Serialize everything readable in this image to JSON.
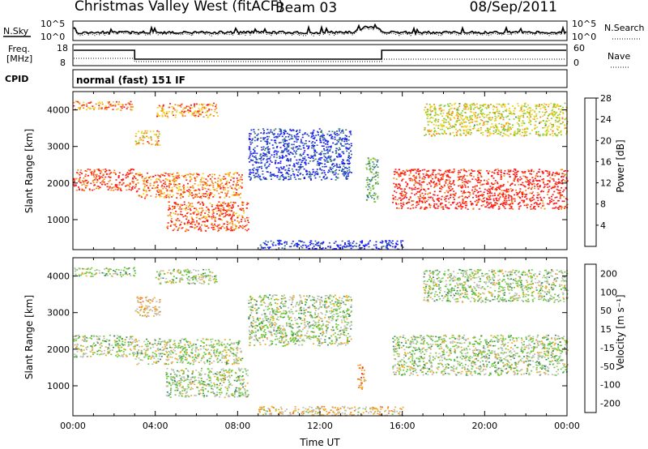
{
  "header": {
    "title": "Christmas Valley West (fitACF)",
    "beam": "Beam 03",
    "date": "08/Sep/2011"
  },
  "panels": {
    "noise": {
      "left_label": "N.Sky",
      "right_label": "N.Search",
      "left_top_tick": "10^5",
      "left_bottom_tick": "10^0",
      "right_top_tick": "10^5",
      "right_bottom_tick": "10^0"
    },
    "freq": {
      "left_label_line1": "Freq.",
      "left_label_line2": "[MHz]",
      "right_label": "Nave",
      "left_ticks": [
        "18",
        "8"
      ],
      "right_ticks": [
        "60",
        "0"
      ]
    },
    "cpid": {
      "label": "CPID",
      "text": "normal (fast) 151 IF"
    }
  },
  "chart_data": [
    {
      "type": "heatmap",
      "name": "power",
      "ylabel": "Slant Range [km]",
      "yticks": [
        1000,
        2000,
        3000,
        4000
      ],
      "ylim": [
        180,
        4500
      ],
      "xlim_hours": [
        0,
        24
      ],
      "colorbar_label": "Power [dB]",
      "colorbar_ticks": [
        "4",
        "8",
        "12",
        "16",
        "20",
        "24",
        "28"
      ],
      "colors": [
        "#1a1aff",
        "#2e5fa8",
        "#3c8c5a",
        "#88cc33",
        "#f2d21e",
        "#f28a1e",
        "#ff1a1a"
      ],
      "echo_bands": [
        {
          "t": [
            0,
            3
          ],
          "range": [
            4000,
            4250
          ],
          "level": 0.8
        },
        {
          "t": [
            0,
            3
          ],
          "range": [
            1800,
            2400
          ],
          "level": 0.9
        },
        {
          "t": [
            3,
            4.2
          ],
          "range": [
            3050,
            3450
          ],
          "level": 0.7
        },
        {
          "t": [
            3,
            8.2
          ],
          "range": [
            1600,
            2300
          ],
          "level": 0.8
        },
        {
          "t": [
            4,
            7
          ],
          "range": [
            3800,
            4200
          ],
          "level": 0.75
        },
        {
          "t": [
            4.5,
            8.5
          ],
          "range": [
            700,
            1500
          ],
          "level": 0.85
        },
        {
          "t": [
            8.5,
            13.5
          ],
          "range": [
            2100,
            3500
          ],
          "level": 0.15
        },
        {
          "t": [
            14.2,
            14.8
          ],
          "range": [
            1500,
            2700
          ],
          "level": 0.4
        },
        {
          "t": [
            15.5,
            24
          ],
          "range": [
            1300,
            2400
          ],
          "level": 0.95
        },
        {
          "t": [
            17,
            24
          ],
          "range": [
            3300,
            4200
          ],
          "level": 0.6
        },
        {
          "t": [
            9,
            16
          ],
          "range": [
            200,
            450
          ],
          "level": 0.1
        }
      ]
    },
    {
      "type": "heatmap",
      "name": "velocity",
      "ylabel": "Slant Range [km]",
      "yticks": [
        1000,
        2000,
        3000,
        4000
      ],
      "ylim": [
        180,
        4500
      ],
      "xlim_hours": [
        0,
        24
      ],
      "xticks": [
        "00:00",
        "04:00",
        "08:00",
        "12:00",
        "16:00",
        "20:00",
        "00:00"
      ],
      "xlabel": "Time UT",
      "colorbar_label": "Velocity [m s⁻¹]",
      "colorbar_ticks": [
        "200",
        "100",
        "50",
        "15",
        "-15",
        "-50",
        "-100",
        "-200"
      ],
      "colors": [
        "#1a1aff",
        "#2e5fa8",
        "#3c8c5a",
        "#66cc33",
        "#bdbdb4",
        "#f2aa1e",
        "#f27a1e",
        "#ff1a1a"
      ],
      "echo_bands": [
        {
          "t": [
            0,
            3
          ],
          "range": [
            4000,
            4250
          ],
          "level": 0.5
        },
        {
          "t": [
            0,
            3
          ],
          "range": [
            1800,
            2400
          ],
          "level": 0.5
        },
        {
          "t": [
            3,
            4.2
          ],
          "range": [
            2900,
            3450
          ],
          "level": 0.65
        },
        {
          "t": [
            3,
            8.2
          ],
          "range": [
            1600,
            2300
          ],
          "level": 0.5
        },
        {
          "t": [
            4,
            7
          ],
          "range": [
            3800,
            4200
          ],
          "level": 0.5
        },
        {
          "t": [
            4.5,
            8.5
          ],
          "range": [
            700,
            1500
          ],
          "level": 0.5
        },
        {
          "t": [
            8.5,
            13.5
          ],
          "range": [
            2100,
            3500
          ],
          "level": 0.5
        },
        {
          "t": [
            13.8,
            14.2
          ],
          "range": [
            900,
            1600
          ],
          "level": 0.75
        },
        {
          "t": [
            15.5,
            24
          ],
          "range": [
            1300,
            2400
          ],
          "level": 0.5
        },
        {
          "t": [
            17,
            24
          ],
          "range": [
            3300,
            4200
          ],
          "level": 0.5
        },
        {
          "t": [
            9,
            16
          ],
          "range": [
            200,
            450
          ],
          "level": 0.65
        }
      ]
    }
  ]
}
